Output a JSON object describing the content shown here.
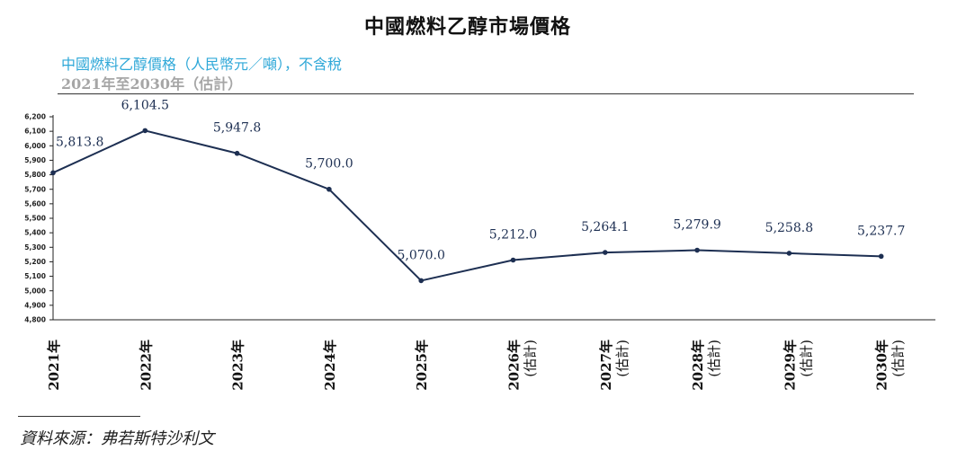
{
  "title": "中國燃料乙醇市場價格",
  "subtitle": "中國燃料乙醇價格（人民幣元／噸），不含稅",
  "period": "2021年至2030年（估計）",
  "source": "資料來源：弗若斯特沙利文",
  "colors": {
    "line": "#1d2f52",
    "subtitle": "#2fa8d8",
    "period": "#a6a6a6"
  },
  "chart_data": {
    "type": "line",
    "title": "中國燃料乙醇價格（人民幣元／噸），不含稅",
    "xlabel": "",
    "ylabel": "",
    "ylim": [
      4800,
      6200
    ],
    "ytick_step": 100,
    "grid": false,
    "categories": [
      "2021年",
      "2022年",
      "2023年",
      "2024年",
      "2025年",
      "2026年",
      "2027年",
      "2028年",
      "2029年",
      "2030年"
    ],
    "category_notes": [
      "",
      "",
      "",
      "",
      "",
      "(估計)",
      "(估計)",
      "(估計)",
      "(估計)",
      "(估計)"
    ],
    "series": [
      {
        "name": "中國燃料乙醇價格",
        "values": [
          5813.8,
          6104.5,
          5947.8,
          5700.0,
          5070.0,
          5212.0,
          5264.1,
          5279.9,
          5258.8,
          5237.7
        ]
      }
    ],
    "data_labels": [
      "5,813.8",
      "6,104.5",
      "5,947.8",
      "5,700.0",
      "5,070.0",
      "5,212.0",
      "5,264.1",
      "5,279.9",
      "5,258.8",
      "5,237.7"
    ]
  }
}
